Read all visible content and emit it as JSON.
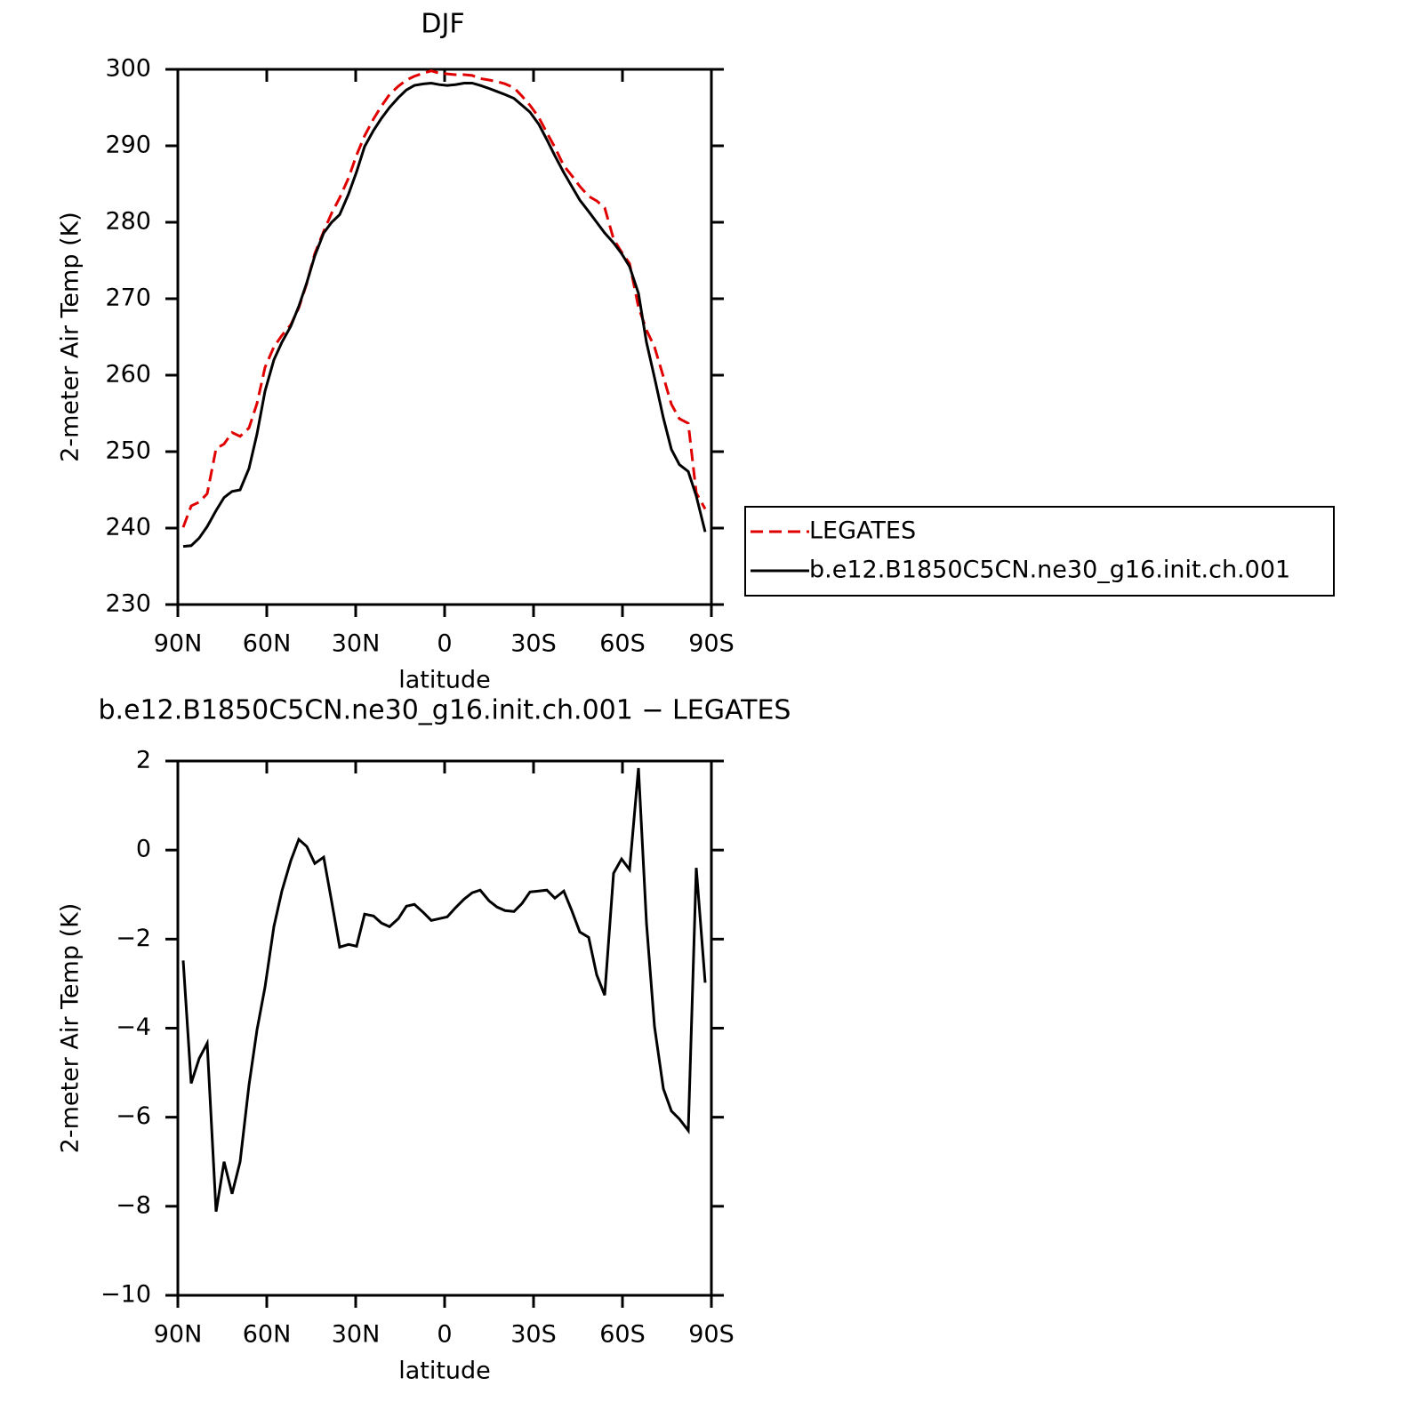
{
  "chart_data": [
    {
      "type": "line",
      "title": "DJF",
      "xlabel": "latitude",
      "ylabel": "2-meter Air Temp (K)",
      "xlim": [
        90,
        -90
      ],
      "ylim": [
        230,
        300
      ],
      "xticks": [
        {
          "value": 90,
          "label": "90N"
        },
        {
          "value": 60,
          "label": "60N"
        },
        {
          "value": 30,
          "label": "30N"
        },
        0,
        {
          "value": -30,
          "label": "30S"
        },
        {
          "value": -60,
          "label": "60S"
        },
        {
          "value": -90,
          "label": "90S"
        }
      ],
      "yticks": [
        230,
        240,
        250,
        260,
        270,
        280,
        290,
        300
      ],
      "legend": "right",
      "x": [
        88.2,
        85.5,
        82.8,
        80.1,
        77.1,
        74.4,
        71.7,
        69,
        66,
        63.3,
        60.6,
        57.6,
        54.9,
        51.9,
        49.2,
        46.5,
        43.8,
        40.8,
        38.1,
        35.4,
        32.4,
        29.7,
        27,
        24,
        21.3,
        18.6,
        15.6,
        12.9,
        10.2,
        7.2,
        4.5,
        1.8,
        -0.9,
        -3.6,
        -6.6,
        -9.3,
        -12,
        -15,
        -17.7,
        -20.4,
        -23.4,
        -26.1,
        -28.8,
        -31.8,
        -34.5,
        -37.2,
        -40.2,
        -42.9,
        -45.6,
        -48.6,
        -51.3,
        -54,
        -57,
        -59.7,
        -62.4,
        -65.4,
        -68.1,
        -70.8,
        -73.8,
        -76.5,
        -79.2,
        -82.2,
        -84.9,
        -87.9
      ],
      "series": [
        {
          "name": "LEGATES",
          "color": "#e00000",
          "linestyle": "dashed",
          "values": [
            240.1,
            242.9,
            243.4,
            244.5,
            250.4,
            251,
            252.5,
            252,
            253.1,
            256.3,
            261,
            263.7,
            265.2,
            266.6,
            268.8,
            272,
            275.9,
            278.8,
            281.2,
            283.2,
            285.8,
            288.8,
            291.3,
            293.5,
            295.2,
            296.7,
            297.8,
            298.6,
            299.1,
            299.5,
            299.8,
            299.5,
            299.4,
            299.3,
            299.3,
            299.2,
            298.8,
            298.6,
            298.4,
            298.1,
            297.6,
            296.5,
            295.3,
            293.7,
            291.7,
            289.8,
            287.4,
            286.1,
            284.7,
            283.4,
            282.8,
            281.9,
            277.8,
            276.1,
            274.6,
            268.9,
            265.9,
            263.7,
            259.8,
            256.2,
            254.3,
            253.7,
            244.6,
            242.5
          ]
        },
        {
          "name": "b.e12.B1850C5CN.ne30_g16.init.ch.001",
          "color": "#000000",
          "linestyle": "solid",
          "values": [
            237.6,
            237.7,
            238.7,
            240.2,
            242.3,
            244,
            244.8,
            245,
            247.8,
            252.3,
            257.9,
            262,
            264.3,
            266.4,
            269,
            272.1,
            275.6,
            278.6,
            280,
            281,
            283.7,
            286.6,
            289.9,
            292,
            293.6,
            295,
            296.3,
            297.3,
            297.9,
            298.1,
            298.2,
            298,
            297.9,
            298,
            298.2,
            298.2,
            297.9,
            297.5,
            297.1,
            296.7,
            296.2,
            295.3,
            294.4,
            292.8,
            290.8,
            288.7,
            286.5,
            284.7,
            282.9,
            281.4,
            280,
            278.6,
            277.3,
            275.9,
            274.2,
            270.7,
            264.3,
            259.7,
            254.4,
            250.3,
            248.3,
            247.4,
            244.2,
            239.5
          ]
        }
      ]
    },
    {
      "type": "line",
      "title": "b.e12.B1850C5CN.ne30_g16.init.ch.001 − LEGATES",
      "xlabel": "latitude",
      "ylabel": "2-meter Air Temp (K)",
      "xlim": [
        90,
        -90
      ],
      "ylim": [
        -10,
        2
      ],
      "xticks": [
        {
          "value": 90,
          "label": "90N"
        },
        {
          "value": 60,
          "label": "60N"
        },
        {
          "value": 30,
          "label": "30N"
        },
        0,
        {
          "value": -30,
          "label": "30S"
        },
        {
          "value": -60,
          "label": "60S"
        },
        {
          "value": -90,
          "label": "90S"
        }
      ],
      "yticks": [
        {
          "value": -10,
          "label": "−10"
        },
        {
          "value": -8,
          "label": "−8"
        },
        {
          "value": -6,
          "label": "−6"
        },
        {
          "value": -4,
          "label": "−4"
        },
        {
          "value": -2,
          "label": "−2"
        },
        0,
        2
      ],
      "x": [
        88.2,
        85.5,
        82.8,
        80.1,
        77.1,
        74.4,
        71.7,
        69,
        66,
        63.3,
        60.6,
        57.6,
        54.9,
        51.9,
        49.2,
        46.5,
        43.8,
        40.8,
        38.1,
        35.4,
        32.4,
        29.7,
        27,
        24,
        21.3,
        18.6,
        15.6,
        12.9,
        10.2,
        7.2,
        4.5,
        1.8,
        -0.9,
        -3.6,
        -6.6,
        -9.3,
        -12,
        -15,
        -17.7,
        -20.4,
        -23.4,
        -26.1,
        -28.8,
        -31.8,
        -34.5,
        -37.2,
        -40.2,
        -42.9,
        -45.6,
        -48.6,
        -51.3,
        -54,
        -57,
        -59.7,
        -62.4,
        -65.4,
        -68.1,
        -70.8,
        -73.8,
        -76.5,
        -79.2,
        -82.2,
        -84.9,
        -87.9
      ],
      "series": [
        {
          "color": "#000000",
          "linestyle": "solid",
          "values": [
            -2.48,
            -5.24,
            -4.68,
            -4.34,
            -8.12,
            -7.0,
            -7.72,
            -7.0,
            -5.28,
            -4.04,
            -3.08,
            -1.72,
            -0.92,
            -0.24,
            0.24,
            0.08,
            -0.3,
            -0.16,
            -1.16,
            -2.18,
            -2.12,
            -2.16,
            -1.44,
            -1.48,
            -1.64,
            -1.72,
            -1.54,
            -1.26,
            -1.22,
            -1.4,
            -1.58,
            -1.54,
            -1.5,
            -1.3,
            -1.1,
            -0.96,
            -0.9,
            -1.14,
            -1.28,
            -1.36,
            -1.38,
            -1.2,
            -0.94,
            -0.92,
            -0.9,
            -1.08,
            -0.92,
            -1.36,
            -1.84,
            -1.96,
            -2.8,
            -3.26,
            -0.52,
            -0.2,
            -0.44,
            1.84,
            -1.64,
            -3.96,
            -5.36,
            -5.86,
            -6.04,
            -6.3,
            -0.4,
            -2.98
          ]
        }
      ]
    }
  ]
}
